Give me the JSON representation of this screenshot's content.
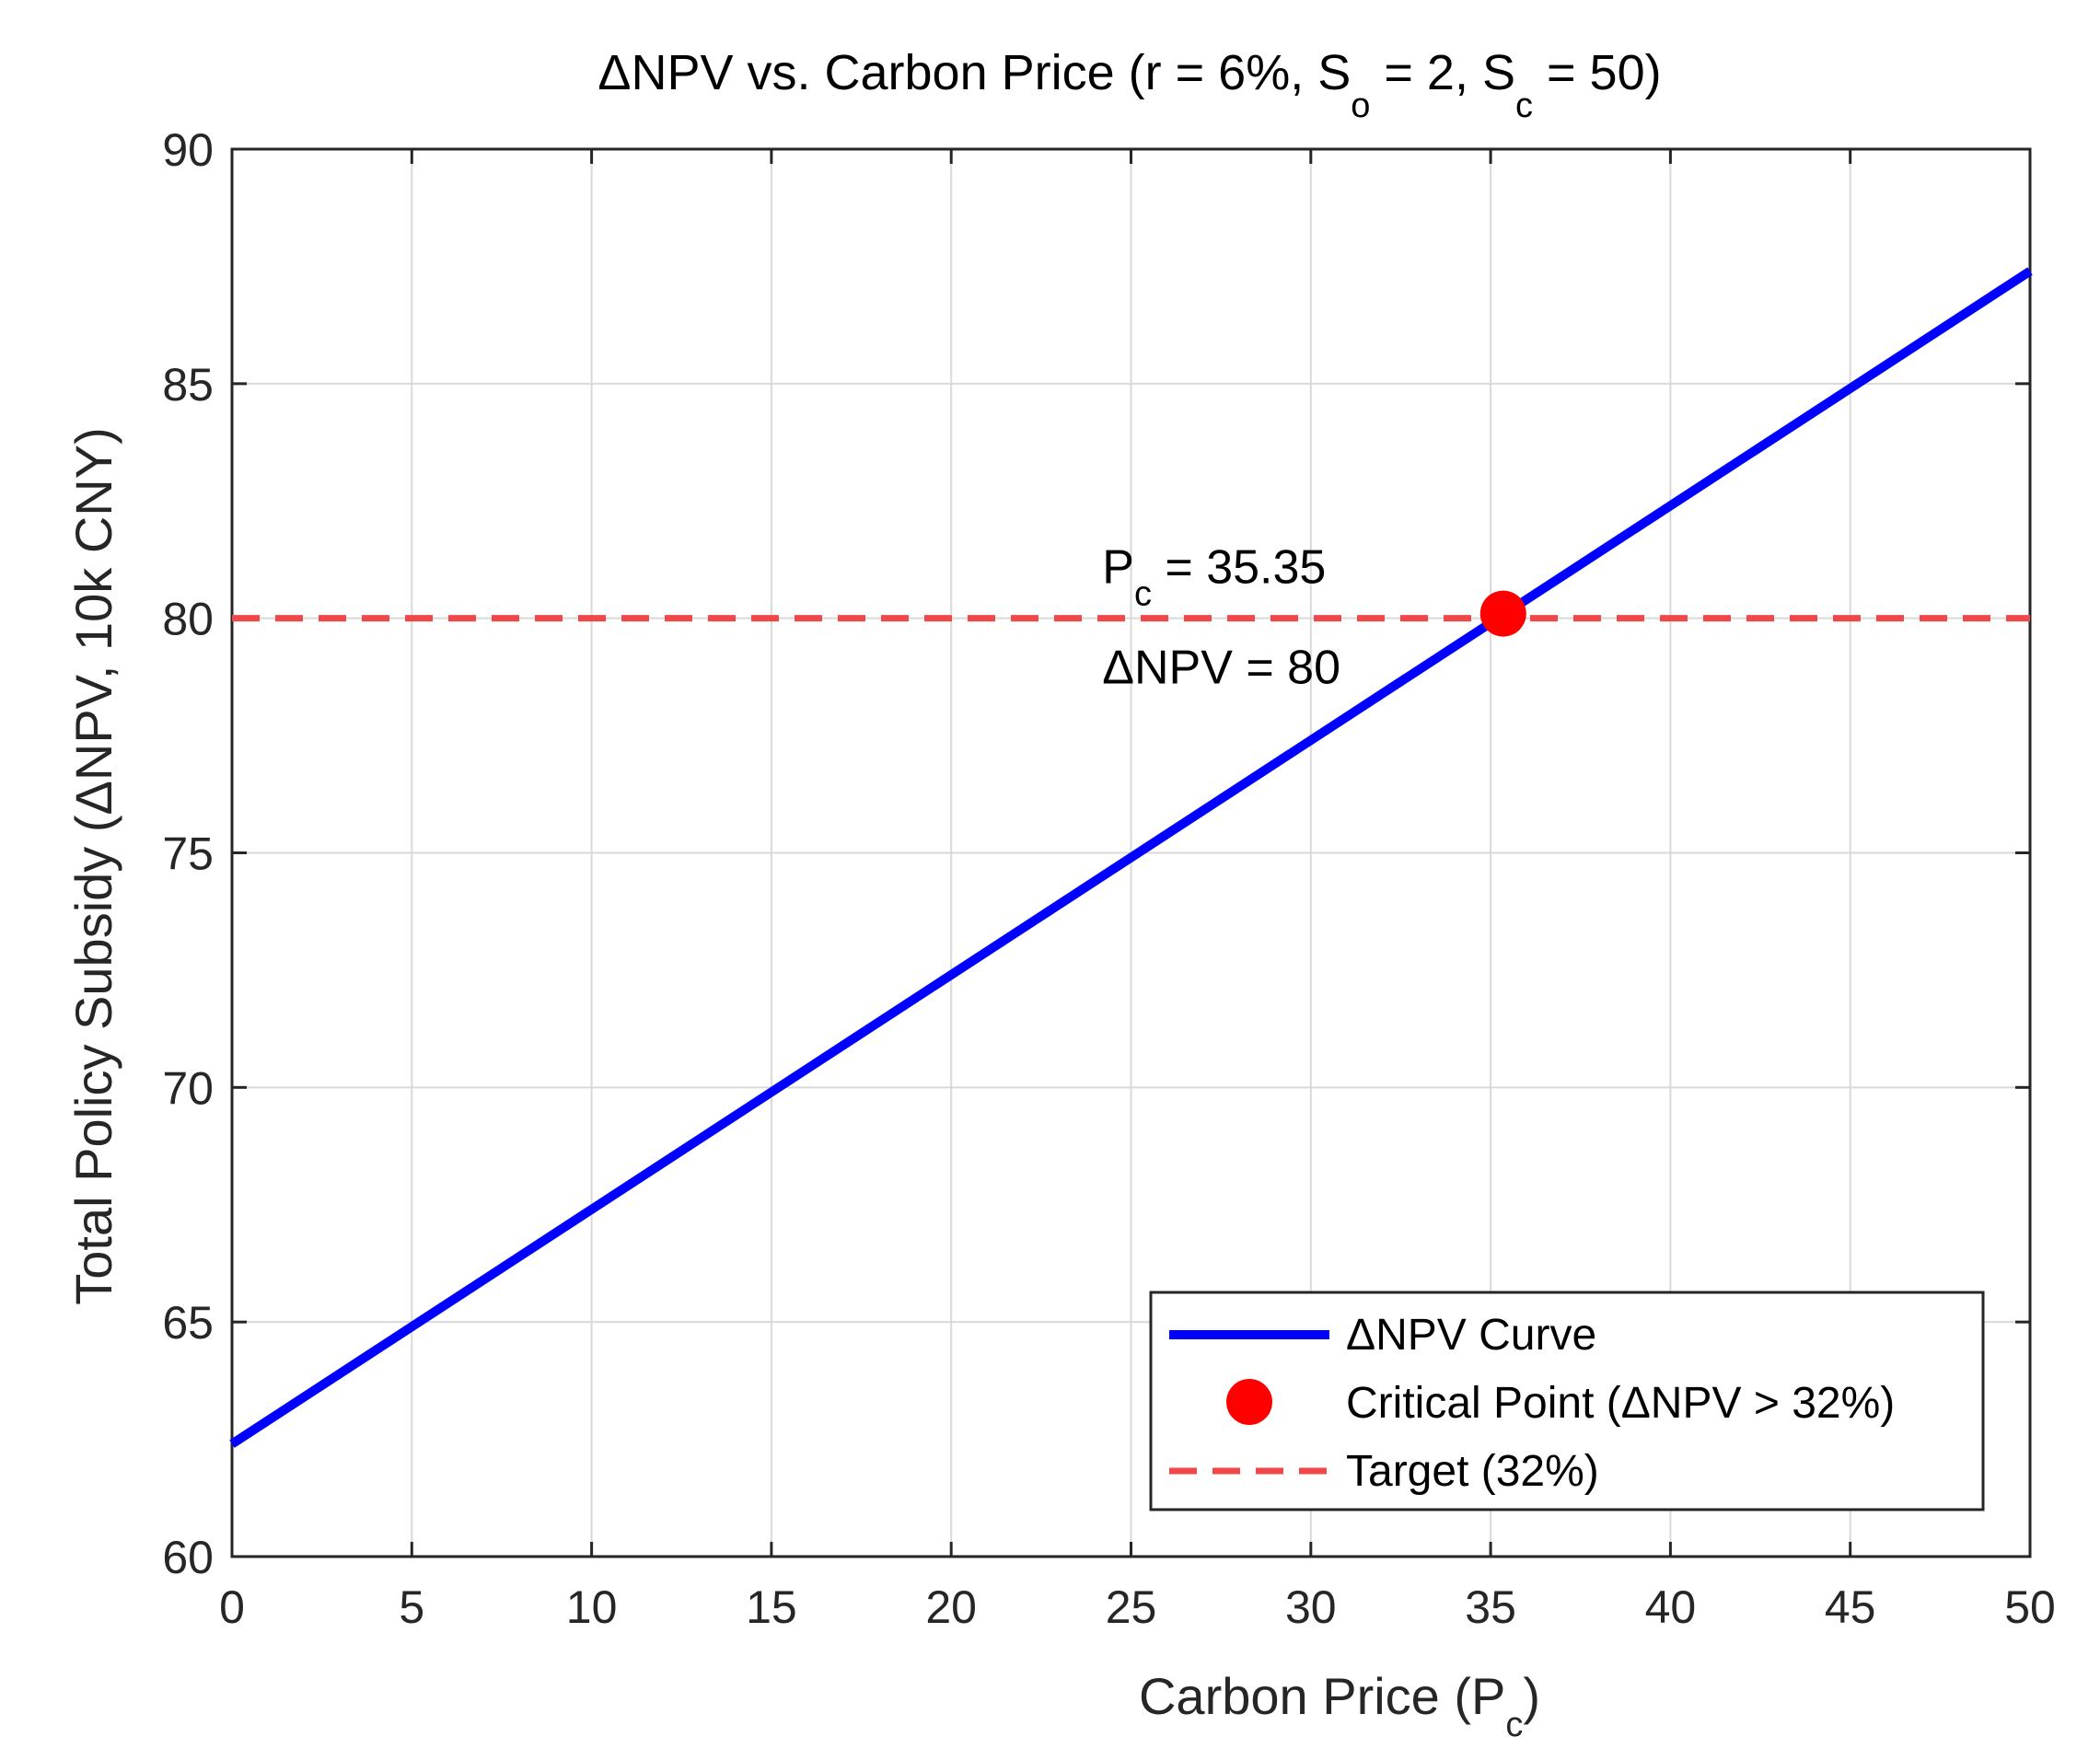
{
  "chart_data": {
    "type": "line",
    "title": {
      "main": "ΔNPV vs. Carbon Price (r = 6%, S",
      "so_sub": "o",
      "mid": " = 2, S",
      "sc_sub": "c",
      "end": " = 50)"
    },
    "xlabel": {
      "main": "Carbon Price (P",
      "sub": "c",
      "end": ")"
    },
    "ylabel": "Total Policy Subsidy (ΔNPV, 10k CNY)",
    "xlim": [
      0,
      50
    ],
    "ylim": [
      60,
      90
    ],
    "x_ticks": [
      0,
      5,
      10,
      15,
      20,
      25,
      30,
      35,
      40,
      45,
      50
    ],
    "y_ticks": [
      60,
      65,
      70,
      75,
      80,
      85,
      90
    ],
    "grid": true,
    "series": [
      {
        "name": "ΔNPV Curve",
        "x": [
          0,
          50
        ],
        "values": [
          62.4,
          87.4
        ],
        "color": "#0000ff",
        "style": "solid"
      },
      {
        "name": "Critical Point (ΔNPV > 32%)",
        "x": [
          35.35
        ],
        "values": [
          80.1
        ],
        "color": "#ff0000",
        "style": "marker"
      },
      {
        "name": "Target (32%)",
        "x": [
          0,
          50
        ],
        "values": [
          80,
          80
        ],
        "color": "#f04848",
        "style": "dashed"
      }
    ],
    "annotation": {
      "line1_main": "P",
      "line1_sub": "c",
      "line1_end": " = 35.35",
      "line2": "ΔNPV = 80",
      "x": 24.2,
      "y": 80
    },
    "legend": {
      "position": "bottom-right",
      "entries": [
        "ΔNPV Curve",
        "Critical Point (ΔNPV > 32%)",
        "Target (32%)"
      ]
    }
  }
}
